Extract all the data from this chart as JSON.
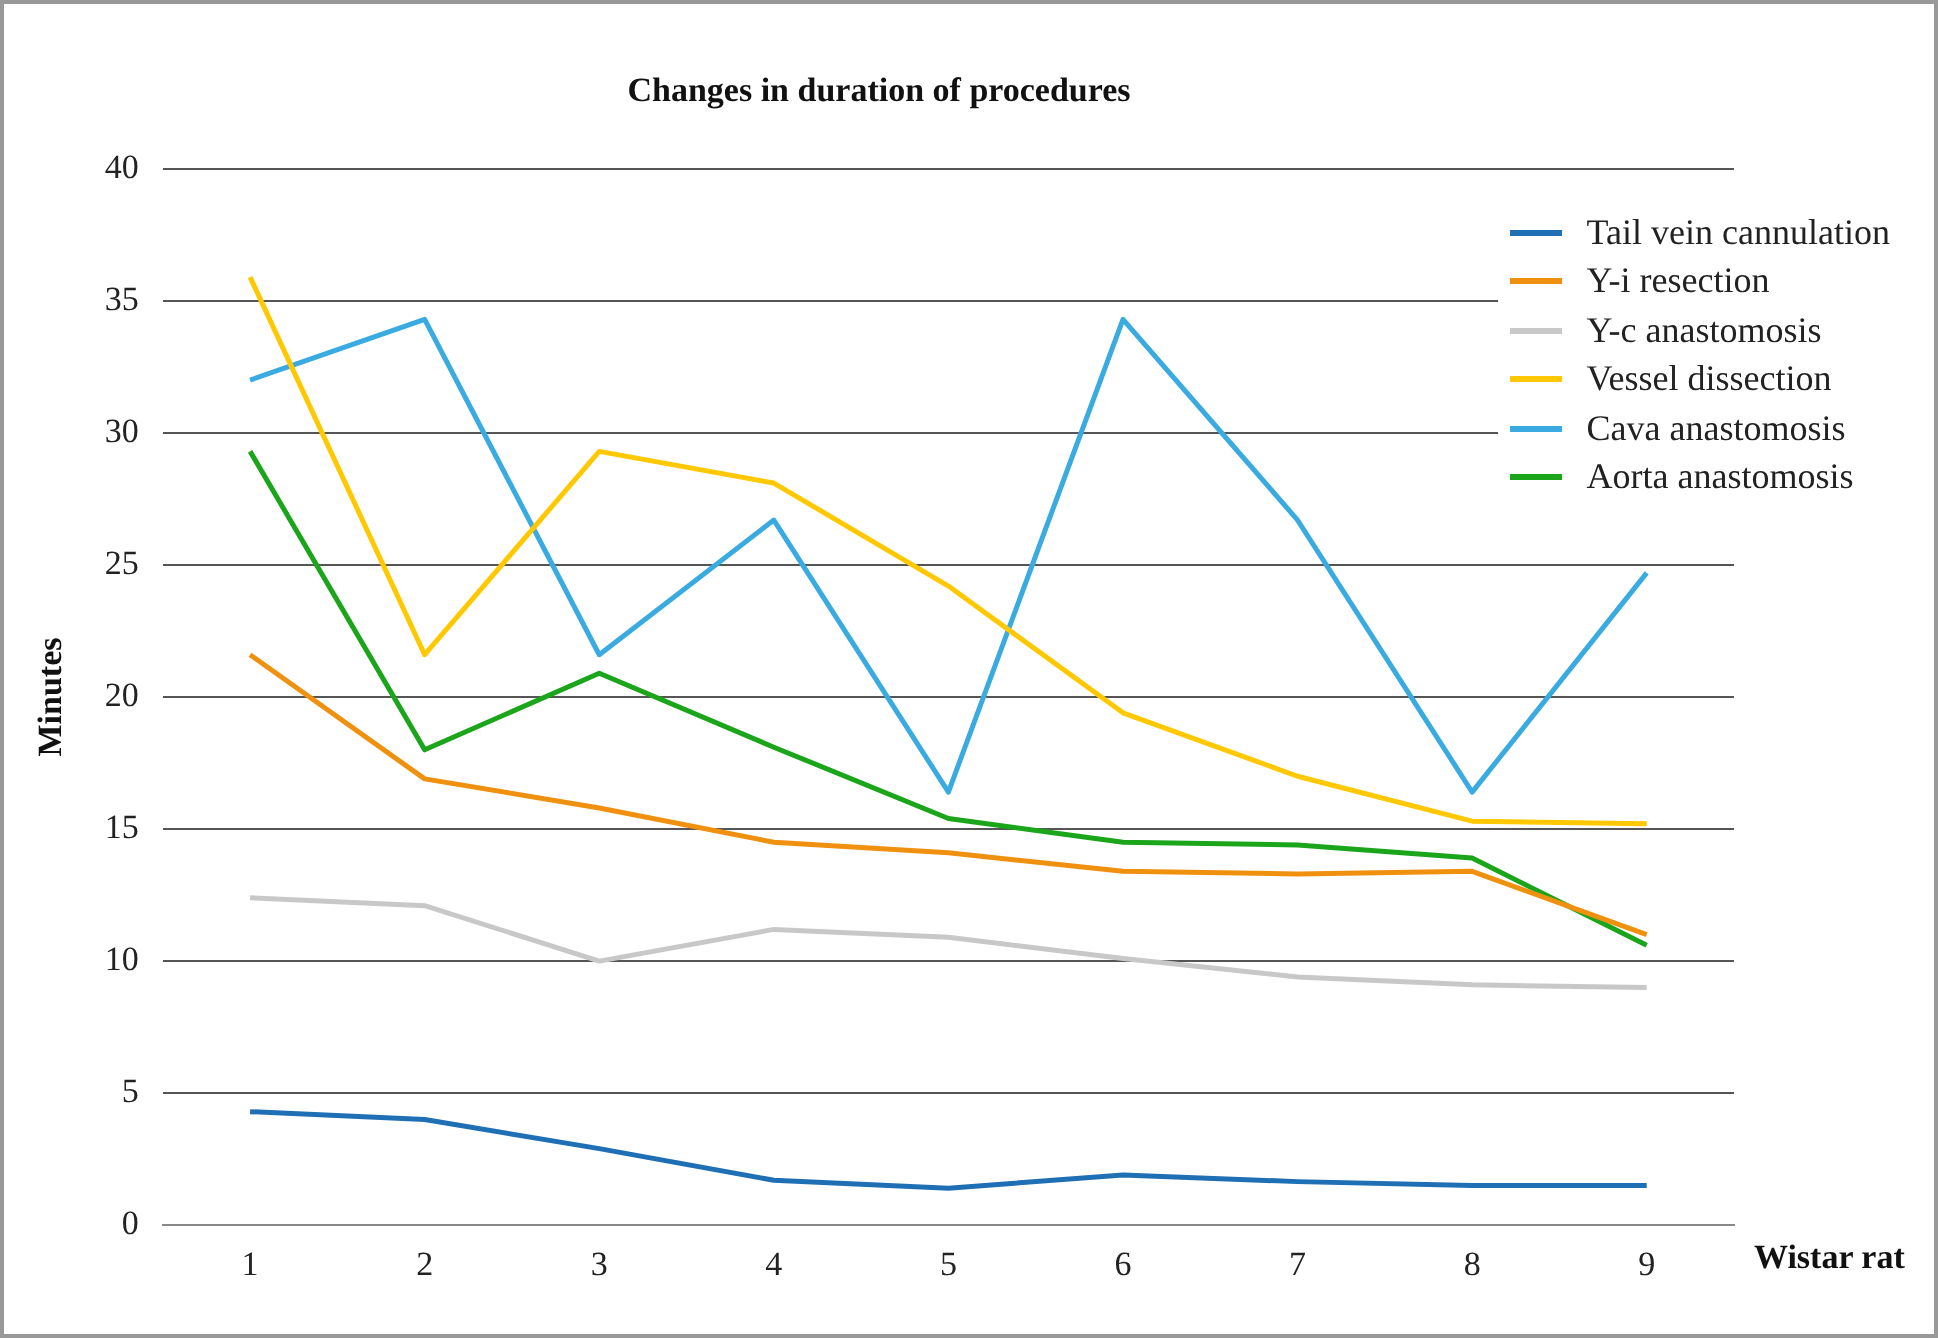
{
  "chart_data": {
    "type": "line",
    "title": "Changes in duration of procedures",
    "xlabel": "Wistar rat",
    "ylabel": "Minutes",
    "categories": [
      "1",
      "2",
      "3",
      "4",
      "5",
      "6",
      "7",
      "8",
      "9"
    ],
    "series": [
      {
        "name": "Tail vein cannulation",
        "color": "#1f6fb5",
        "values": [
          4.3,
          4.0,
          2.9,
          1.7,
          1.4,
          1.9,
          1.65,
          1.5,
          1.5
        ]
      },
      {
        "name": "Y-i resection",
        "color": "#f0900f",
        "values": [
          21.6,
          16.9,
          15.8,
          14.5,
          14.1,
          13.4,
          13.3,
          13.4,
          11.0
        ]
      },
      {
        "name": "Y-c anastomosis",
        "color": "#c8c8c8",
        "values": [
          12.4,
          12.1,
          10.0,
          11.2,
          10.9,
          10.1,
          9.4,
          9.1,
          9.0
        ]
      },
      {
        "name": "Vessel dissection",
        "color": "#ffc800",
        "values": [
          35.9,
          21.6,
          29.3,
          28.1,
          24.2,
          19.4,
          17.0,
          15.3,
          15.2
        ]
      },
      {
        "name": "Cava anastomosis",
        "color": "#3aabe0",
        "values": [
          32.0,
          34.3,
          21.6,
          26.7,
          16.4,
          34.3,
          26.7,
          16.4,
          24.7
        ]
      },
      {
        "name": "Aorta anastomosis",
        "color": "#1aa51a",
        "values": [
          29.3,
          18.0,
          20.9,
          18.1,
          15.4,
          14.5,
          14.4,
          13.9,
          10.6
        ]
      }
    ],
    "ylim": [
      0,
      40
    ],
    "yticks": [
      0,
      5,
      10,
      15,
      20,
      25,
      30,
      35,
      40
    ],
    "grid": "y",
    "legend": "top right",
    "marker": "none",
    "line_style": "solid"
  }
}
